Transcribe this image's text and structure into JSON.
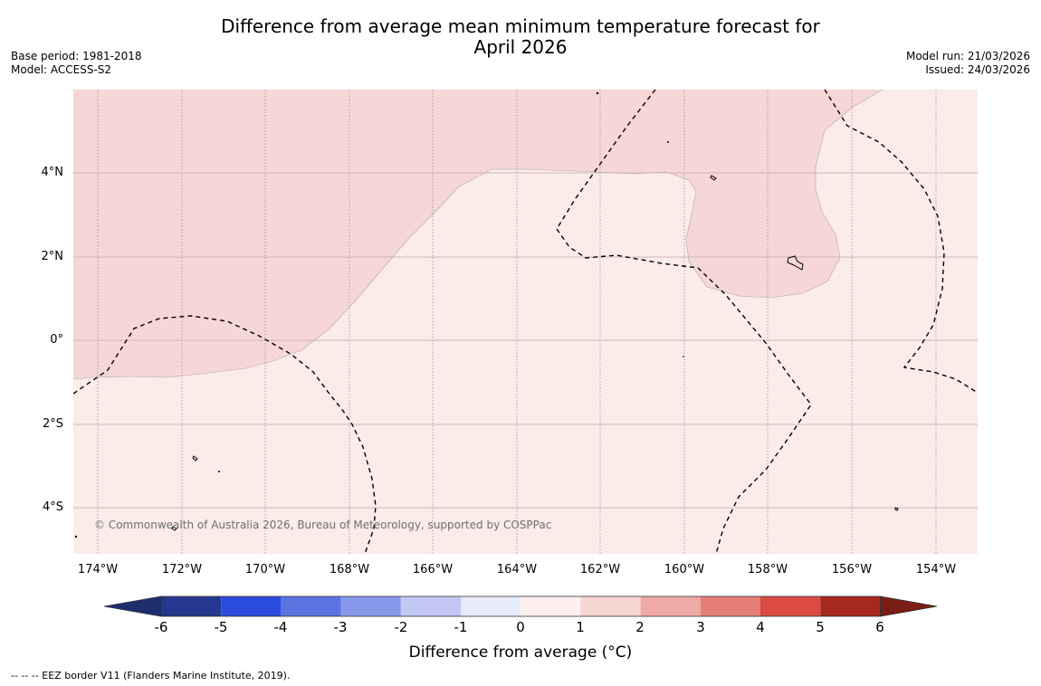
{
  "title": {
    "line1": "Difference from average mean minimum temperature forecast for",
    "line2": "April 2026"
  },
  "meta_left": {
    "base_period": "Base period: 1981-2018",
    "model": "Model: ACCESS-S2"
  },
  "meta_right": {
    "model_run": "Model run: 21/03/2026",
    "issued": "Issued: 24/03/2026"
  },
  "map": {
    "copyright": "© Commonwealth of Australia 2026, Bureau of Meteorology, supported by COSPPac",
    "lat_labels": [
      "4°N",
      "2°N",
      "0°",
      "2°S",
      "4°S"
    ],
    "lon_labels": [
      "174°W",
      "172°W",
      "170°W",
      "168°W",
      "166°W",
      "164°W",
      "162°W",
      "160°W",
      "158°W",
      "156°W",
      "154°W"
    ],
    "colors": {
      "anomaly_0_1": "#fbebe9",
      "anomaly_1_2": "#f6d7d5",
      "gridline": "#a0a0a0"
    }
  },
  "colorbar": {
    "ticks": [
      "-6",
      "-5",
      "-4",
      "-3",
      "-2",
      "-1",
      "0",
      "1",
      "2",
      "3",
      "4",
      "5",
      "6"
    ],
    "label": "Difference from average (°C)",
    "colors": [
      "#25378f",
      "#2440b8",
      "#2c4bdf",
      "#5b74e2",
      "#8798ea",
      "#c2c8f3",
      "#e7eafa",
      "#fdf0ee",
      "#f8d6d3",
      "#efaaa6",
      "#e67e78",
      "#db4b42",
      "#a7281f",
      "#7a1d16"
    ]
  },
  "footnote": "--  --  -- EEZ border V11 (Flanders Marine Institute, 2019)."
}
